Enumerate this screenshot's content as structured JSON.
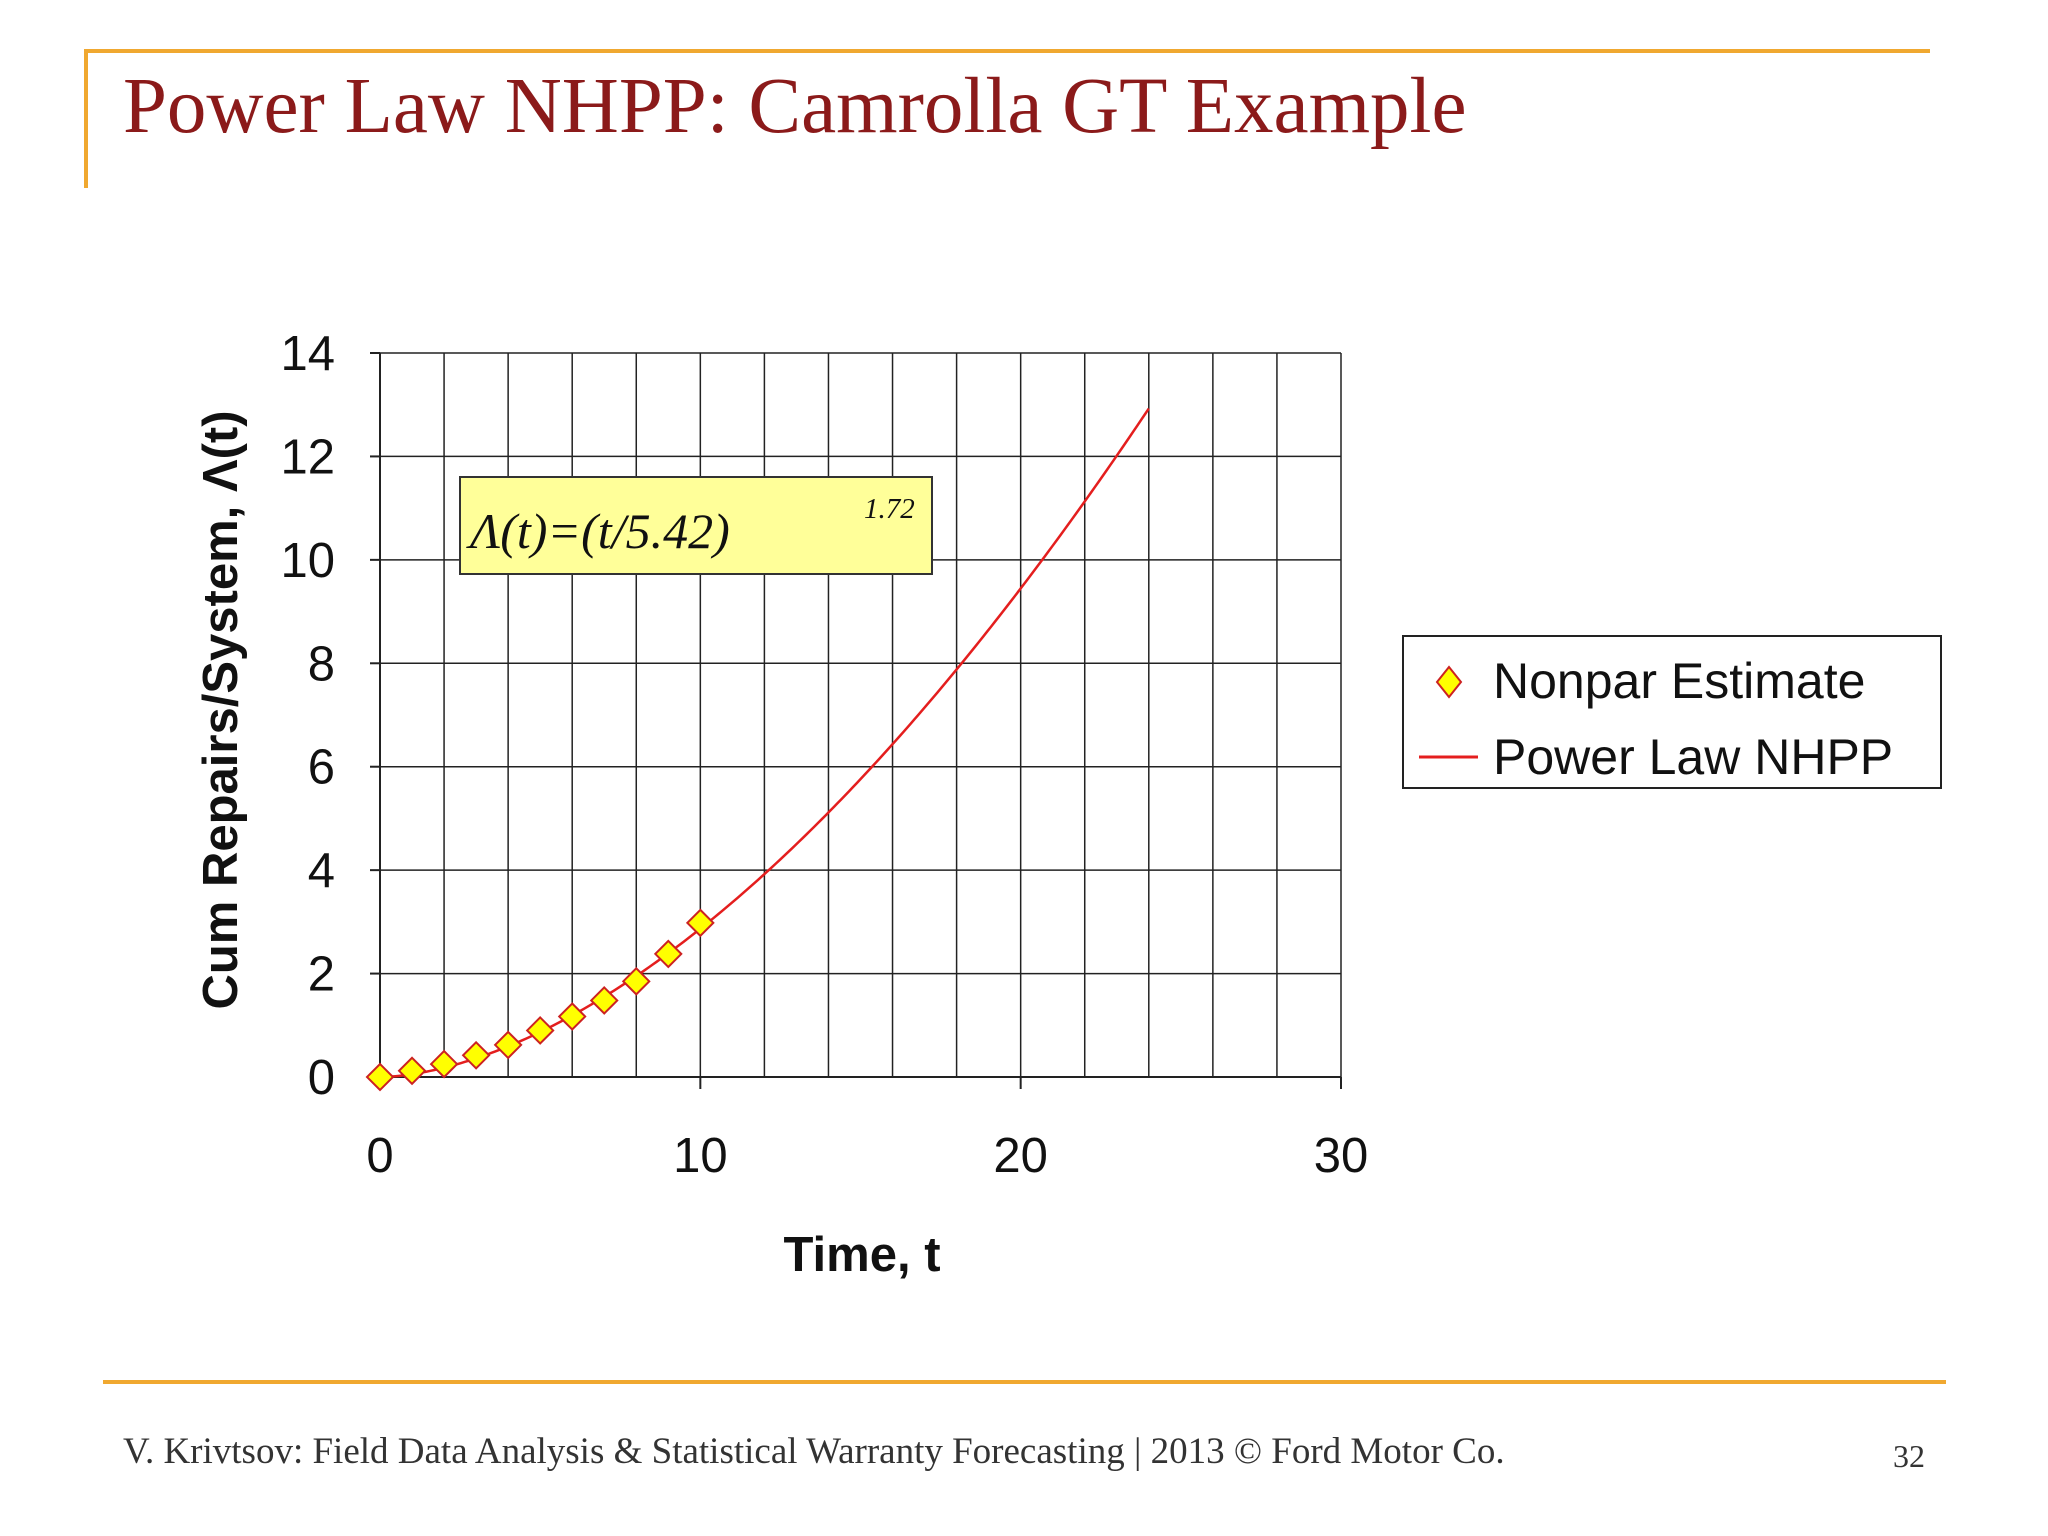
{
  "slide": {
    "title": "Power Law NHPP: Camrolla GT Example",
    "footer": "V. Krivtsov: Field Data Analysis & Statistical Warranty Forecasting |  2013 © Ford Motor Co.",
    "page_number": "32"
  },
  "colors": {
    "accent_rule": "#F0A830",
    "title": "#8B1A1A",
    "curve": "#E41E1E",
    "marker_fill": "#FFFF00",
    "marker_stroke": "#CC2222",
    "formula_box_fill": "#FFFF99"
  },
  "chart_data": {
    "type": "line",
    "xlabel": "Time, t",
    "ylabel": "Cum Repairs/System, Λ(t)",
    "xlim": [
      0,
      30
    ],
    "ylim": [
      0,
      14
    ],
    "xticks": [
      "0",
      "10",
      "20",
      "30"
    ],
    "yticks": [
      "0",
      "2",
      "4",
      "6",
      "8",
      "10",
      "12",
      "14"
    ],
    "x_minor_step": 2,
    "grid": true,
    "legend_position": "right",
    "annotation": {
      "lhs": "Λ(t)=(t/5.42)",
      "exponent": "1.72"
    },
    "series": [
      {
        "name": "Nonpar Estimate",
        "kind": "markers",
        "marker": "diamond",
        "x": [
          0,
          1,
          2,
          3,
          4,
          5,
          6,
          7,
          8,
          9,
          10
        ],
        "y": [
          0.0,
          0.12,
          0.25,
          0.42,
          0.62,
          0.9,
          1.17,
          1.48,
          1.85,
          2.38,
          2.98
        ]
      },
      {
        "name": "Power Law NHPP",
        "kind": "line",
        "model": {
          "scale": 5.42,
          "shape": 1.72
        },
        "x_range": [
          0,
          24
        ]
      }
    ]
  }
}
